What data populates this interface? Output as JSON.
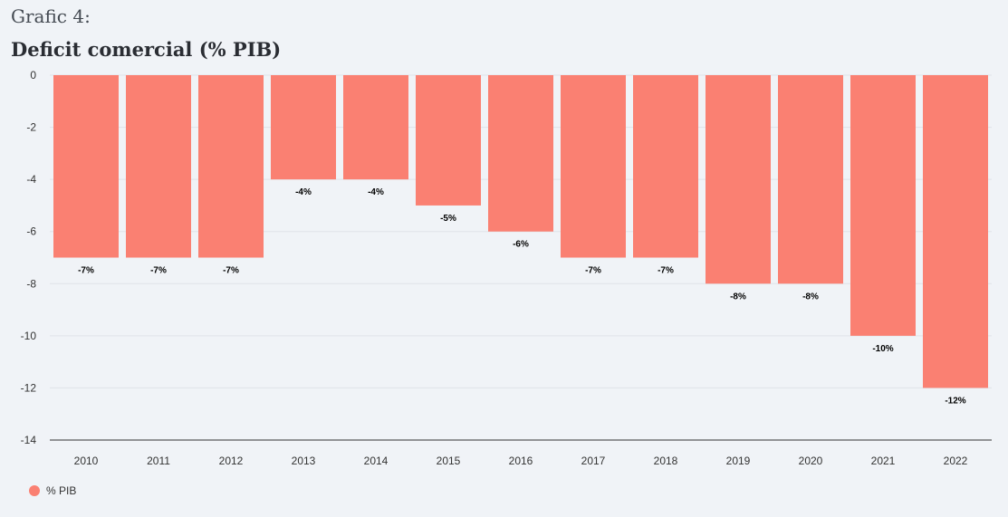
{
  "header": {
    "subtitle": "Grafic 4:",
    "title": "Deficit comercial (% PIB)"
  },
  "colors": {
    "bar": "#fa8072",
    "grid": "#dfe3e8",
    "axis": "#333333"
  },
  "chart_data": {
    "type": "bar",
    "categories": [
      "2010",
      "2011",
      "2012",
      "2013",
      "2014",
      "2015",
      "2016",
      "2017",
      "2018",
      "2019",
      "2020",
      "2021",
      "2022"
    ],
    "series": [
      {
        "name": "% PIB",
        "values": [
          -7,
          -7,
          -7,
          -4,
          -4,
          -5,
          -6,
          -7,
          -7,
          -8,
          -8,
          -10,
          -12
        ],
        "labels": [
          "-7%",
          "-7%",
          "-7%",
          "-4%",
          "-4%",
          "-5%",
          "-6%",
          "-7%",
          "-7%",
          "-8%",
          "-8%",
          "-10%",
          "-12%"
        ]
      }
    ],
    "yticks": [
      "0",
      "-2",
      "-4",
      "-6",
      "-8",
      "-10",
      "-12",
      "-14"
    ],
    "ylim": [
      -14,
      0
    ],
    "grid": true,
    "legend_position": "bottom-left"
  },
  "legend": {
    "label": "% PIB"
  }
}
